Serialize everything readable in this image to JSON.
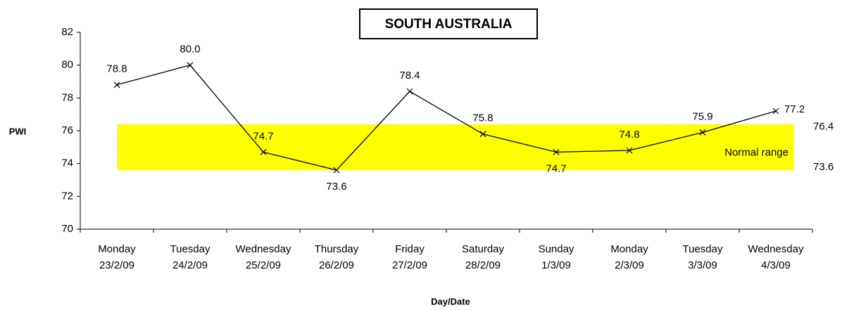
{
  "chart_data": {
    "type": "line",
    "title": "SOUTH AUSTRALIA",
    "y_label": "PWI",
    "x_label": "Day/Date",
    "categories": [
      [
        "Monday",
        "23/2/09"
      ],
      [
        "Tuesday",
        "24/2/09"
      ],
      [
        "Wednesday",
        "25/2/09"
      ],
      [
        "Thursday",
        "26/2/09"
      ],
      [
        "Friday",
        "27/2/09"
      ],
      [
        "Saturday",
        "28/2/09"
      ],
      [
        "Sunday",
        "1/3/09"
      ],
      [
        "Monday",
        "2/3/09"
      ],
      [
        "Tuesday",
        "3/3/09"
      ],
      [
        "Wednesday",
        "4/3/09"
      ]
    ],
    "values": [
      78.8,
      80.0,
      74.7,
      73.6,
      78.4,
      75.8,
      74.7,
      74.8,
      75.9,
      77.2
    ],
    "value_labels": [
      "78.8",
      "80.0",
      "74.7",
      "73.6",
      "78.4",
      "75.8",
      "74.7",
      "74.8",
      "75.9",
      "77.2"
    ],
    "color": "#000000",
    "band": {
      "label": "Normal range",
      "low": 73.6,
      "high": 76.4,
      "color": "#ffff00"
    },
    "ylim": [
      70,
      82
    ],
    "yticks": [
      70,
      72,
      74,
      76,
      78,
      80,
      82
    ]
  }
}
